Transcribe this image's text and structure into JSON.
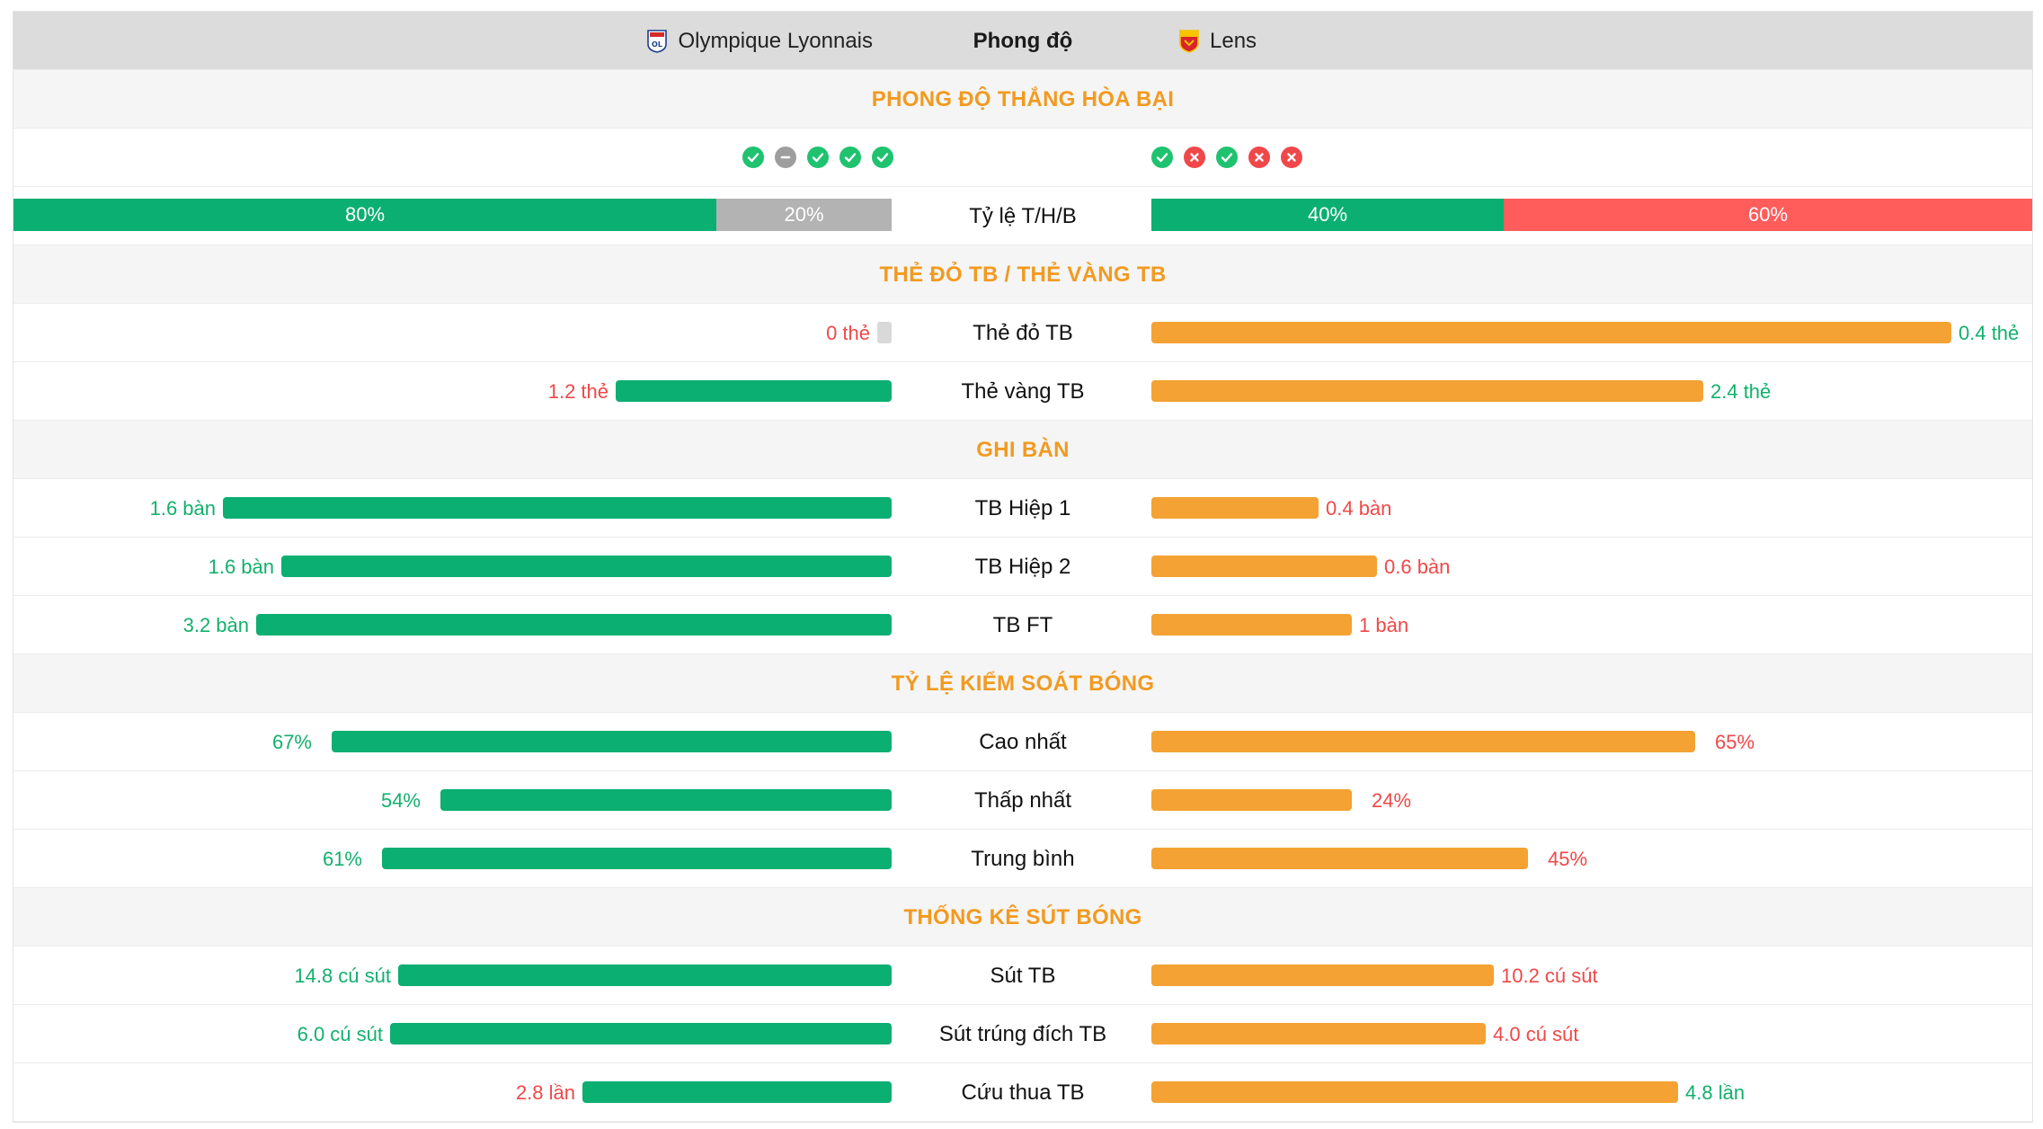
{
  "header": {
    "home_team": "Olympique Lyonnais",
    "title": "Phong độ",
    "away_team": "Lens"
  },
  "colors": {
    "win": "#1fc26f",
    "draw": "#9e9e9e",
    "loss": "#f0484a",
    "home_bar": "#0caf72",
    "away_bar": "#f4a233",
    "section_title": "#f29a20"
  },
  "form": {
    "section_title": "PHONG ĐỘ THẮNG HÒA BẠI",
    "home_results": [
      "W",
      "D",
      "W",
      "W",
      "W"
    ],
    "away_results": [
      "W",
      "L",
      "W",
      "L",
      "L"
    ],
    "ratio_label": "Tỷ lệ T/H/B",
    "home_ratio": [
      {
        "label": "80%",
        "value": 80,
        "kind": "win"
      },
      {
        "label": "20%",
        "value": 20,
        "kind": "draw"
      }
    ],
    "away_ratio": [
      {
        "label": "40%",
        "value": 40,
        "kind": "win"
      },
      {
        "label": "60%",
        "value": 60,
        "kind": "loss"
      }
    ]
  },
  "cards": {
    "section_title": "THẺ ĐỎ TB / THẺ VÀNG TB",
    "rows": [
      {
        "label": "Thẻ đỏ TB",
        "home_text": "0 thẻ",
        "home_fill": 0.0,
        "home_tone": "red",
        "away_text": "0.4 thẻ",
        "away_fill": 1.0,
        "away_tone": "green"
      },
      {
        "label": "Thẻ vàng TB",
        "home_text": "1.2 thẻ",
        "home_fill": 0.33,
        "home_tone": "red",
        "away_text": "2.4 thẻ",
        "away_fill": 0.66,
        "away_tone": "green"
      }
    ]
  },
  "goals": {
    "section_title": "GHI BÀN",
    "rows": [
      {
        "label": "TB Hiệp 1",
        "home_text": "1.6 bàn",
        "home_fill": 0.8,
        "home_tone": "green",
        "away_text": "0.4 bàn",
        "away_fill": 0.2,
        "away_tone": "red"
      },
      {
        "label": "TB Hiệp 2",
        "home_text": "1.6 bàn",
        "home_fill": 0.73,
        "home_tone": "green",
        "away_text": "0.6 bàn",
        "away_fill": 0.27,
        "away_tone": "red"
      },
      {
        "label": "TB FT",
        "home_text": "3.2 bàn",
        "home_fill": 0.76,
        "home_tone": "green",
        "away_text": "1 bàn",
        "away_fill": 0.24,
        "away_tone": "red"
      }
    ]
  },
  "possession": {
    "section_title": "TỶ LỆ KIỂM SOÁT BÓNG",
    "rows": [
      {
        "label": "Cao nhất",
        "home_text": "67%",
        "home_fill": 0.67,
        "home_tone": "green",
        "away_text": "65%",
        "away_fill": 0.65,
        "away_tone": "red"
      },
      {
        "label": "Thấp nhất",
        "home_text": "54%",
        "home_fill": 0.54,
        "home_tone": "green",
        "away_text": "24%",
        "away_fill": 0.24,
        "away_tone": "red"
      },
      {
        "label": "Trung bình",
        "home_text": "61%",
        "home_fill": 0.61,
        "home_tone": "green",
        "away_text": "45%",
        "away_fill": 0.45,
        "away_tone": "red"
      }
    ]
  },
  "shots": {
    "section_title": "THỐNG KÊ SÚT BÓNG",
    "rows": [
      {
        "label": "Sút TB",
        "home_text": "14.8 cú sút",
        "home_fill": 0.59,
        "home_tone": "green",
        "away_text": "10.2 cú sút",
        "away_fill": 0.41,
        "away_tone": "red"
      },
      {
        "label": "Sút trúng đích TB",
        "home_text": "6.0 cú sút",
        "home_fill": 0.6,
        "home_tone": "green",
        "away_text": "4.0 cú sút",
        "away_fill": 0.4,
        "away_tone": "red"
      },
      {
        "label": "Cứu thua TB",
        "home_text": "2.8 lần",
        "home_fill": 0.37,
        "home_tone": "red",
        "away_text": "4.8 lần",
        "away_fill": 0.63,
        "away_tone": "green"
      }
    ]
  }
}
